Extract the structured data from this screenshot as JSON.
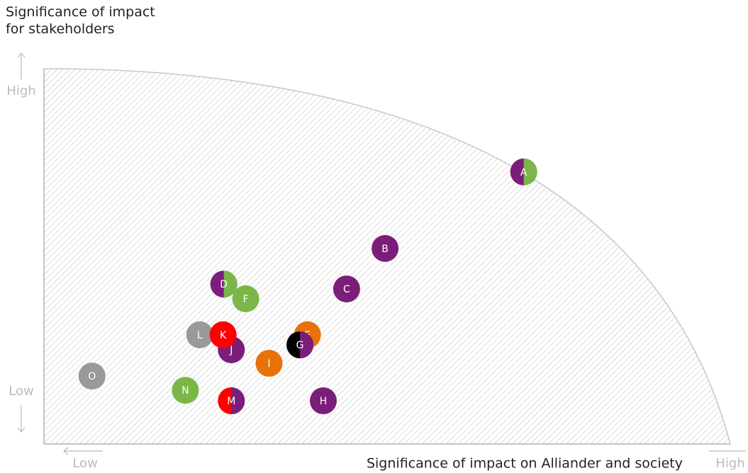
{
  "chart_data": {
    "type": "scatter",
    "xlabel": "Significance of impact on Alliander and society",
    "ylabel": "Significance of impact for stakeholders",
    "xlim": [
      0,
      100
    ],
    "ylim": [
      0,
      100
    ],
    "xticks": [
      {
        "value": 6,
        "label": "Low"
      },
      {
        "value": 100,
        "label": "High"
      }
    ],
    "yticks": [
      {
        "value": 14,
        "label": "Low"
      },
      {
        "value": 94,
        "label": "High"
      }
    ],
    "points": [
      "A",
      "B",
      "C",
      "D",
      "F",
      "E",
      "G",
      "L",
      "J",
      "K",
      "I",
      "O",
      "N",
      "M",
      "H"
    ],
    "x": [
      69.9,
      49.7,
      44.1,
      26.2,
      29.4,
      38.4,
      37.3,
      22.7,
      27.3,
      26.1,
      32.8,
      7.0,
      20.6,
      27.3,
      40.7
    ],
    "values": [
      72.5,
      52.1,
      41.3,
      42.6,
      38.7,
      29.1,
      26.4,
      29.1,
      25.1,
      29.1,
      21.5,
      18.1,
      14.3,
      11.5,
      11.5
    ],
    "colors": [
      [
        "#7b1e7a",
        "#7ab648"
      ],
      [
        "#7b1e7a"
      ],
      [
        "#7b1e7a"
      ],
      [
        "#7b1e7a",
        "#7ab648"
      ],
      [
        "#7ab648"
      ],
      [
        "#e8710a"
      ],
      [
        "#000000",
        "#7b1e7a"
      ],
      [
        "#999999"
      ],
      [
        "#7b1e7a"
      ],
      [
        "#ff0000"
      ],
      [
        "#e8710a"
      ],
      [
        "#999999"
      ],
      [
        "#7ab648"
      ],
      [
        "#ff0000",
        "#7b1e7a"
      ],
      [
        "#7b1e7a"
      ]
    ]
  }
}
